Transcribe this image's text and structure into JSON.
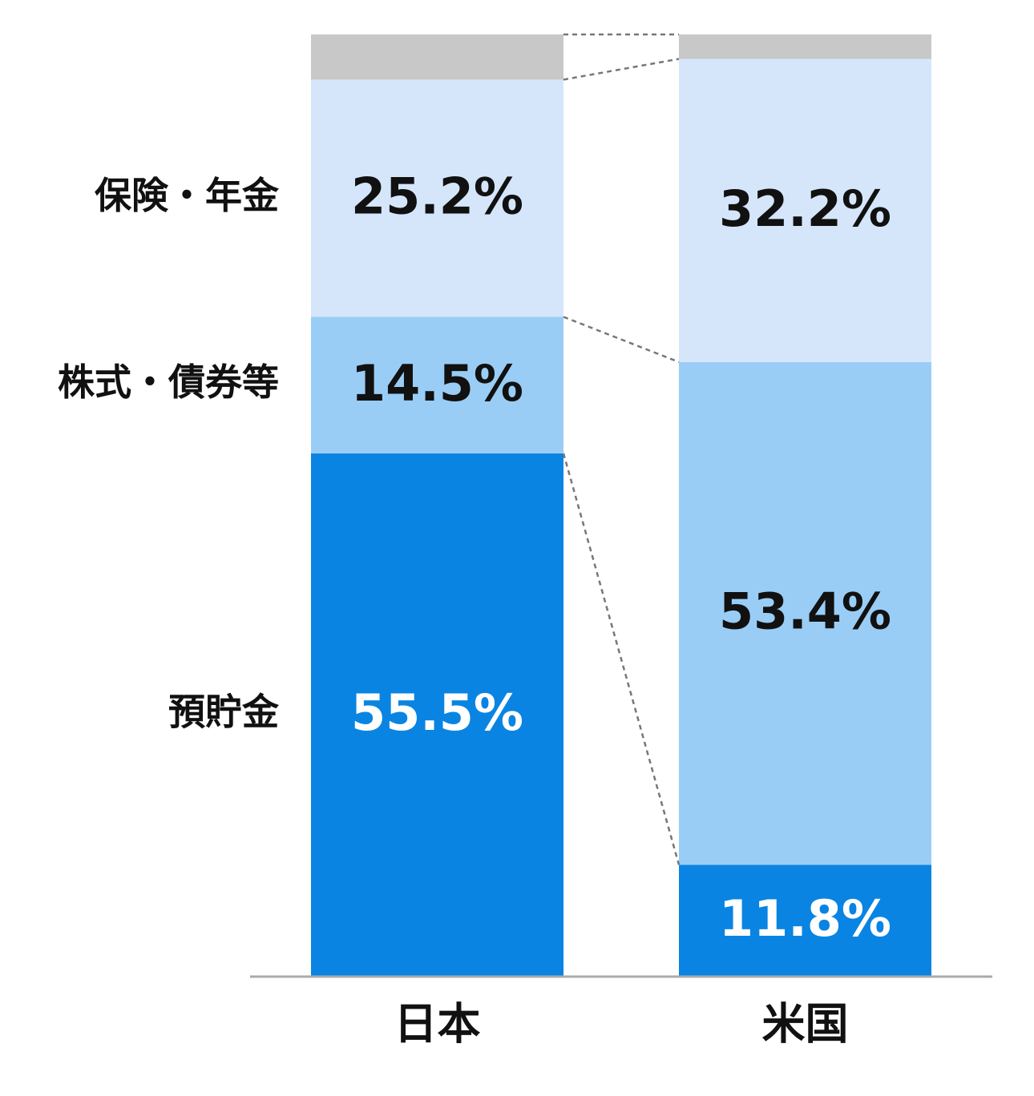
{
  "chart_data": {
    "type": "stacked_bar",
    "categories": [
      "日本",
      "米国"
    ],
    "ylim": [
      0,
      100
    ],
    "series": [
      {
        "name": "預貯金",
        "color": "#0a84e2",
        "label_color": "#ffffff",
        "values": [
          55.5,
          11.8
        ],
        "value_labels": [
          "55.5%",
          "11.8%"
        ]
      },
      {
        "name": "株式・債券等",
        "color": "#9acdf5",
        "label_color": "#111111",
        "values": [
          14.5,
          53.4
        ],
        "value_labels": [
          "14.5%",
          "53.4%"
        ]
      },
      {
        "name": "保険・年金",
        "color": "#d5e6fb",
        "label_color": "#111111",
        "values": [
          25.2,
          32.2
        ],
        "value_labels": [
          "25.2%",
          "32.2%"
        ]
      },
      {
        "name": null,
        "color": "#c8c8c8",
        "values": [
          4.8,
          2.6
        ]
      }
    ]
  }
}
